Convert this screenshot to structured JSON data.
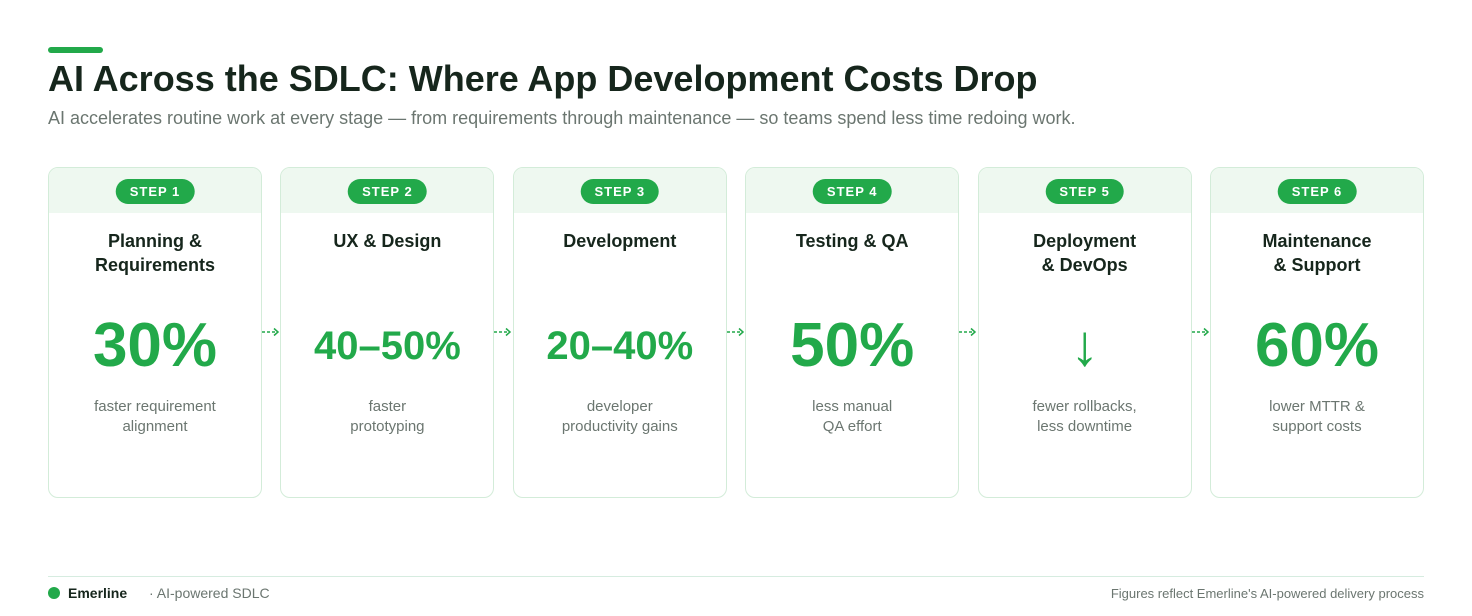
{
  "header": {
    "title": "AI Across the SDLC: Where App Development Costs Drop",
    "subtitle": "AI accelerates routine work at every stage — from requirements through maintenance — so teams spend less time redoing work."
  },
  "steps": [
    {
      "badge": "STEP 1",
      "title": [
        "Planning &",
        "Requirements"
      ],
      "metric": "30%",
      "description": [
        "faster requirement",
        "alignment"
      ]
    },
    {
      "badge": "STEP 2",
      "title": [
        "UX & Design"
      ],
      "metric": "40–50%",
      "description": [
        "faster",
        "prototyping"
      ]
    },
    {
      "badge": "STEP 3",
      "title": [
        "Development"
      ],
      "metric": "20–40%",
      "description": [
        "developer",
        "productivity gains"
      ]
    },
    {
      "badge": "STEP 4",
      "title": [
        "Testing & QA"
      ],
      "metric": "50%",
      "description": [
        "less manual",
        "QA effort"
      ]
    },
    {
      "badge": "STEP 5",
      "title": [
        "Deployment",
        "& DevOps"
      ],
      "metric": "↓",
      "description": [
        "fewer rollbacks,",
        "less downtime"
      ]
    },
    {
      "badge": "STEP 6",
      "title": [
        "Maintenance",
        "& Support"
      ],
      "metric": "60%",
      "description": [
        "lower MTTR &",
        "support costs"
      ]
    }
  ],
  "footer": {
    "brand": "Emerline",
    "tagline": "· AI-powered SDLC",
    "note": "Figures reflect Emerline's AI-powered delivery process"
  }
}
